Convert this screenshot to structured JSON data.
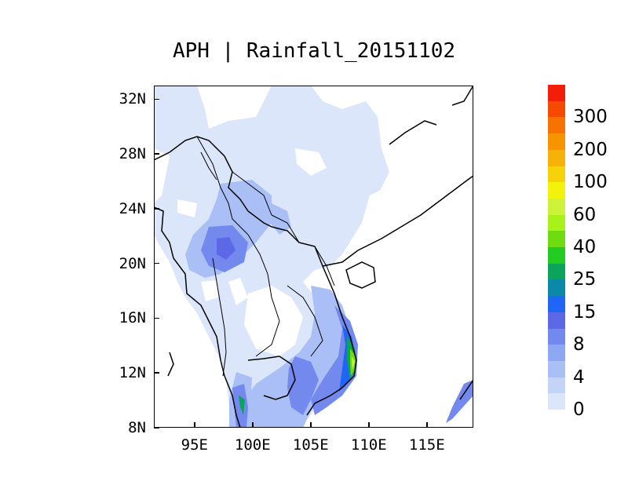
{
  "map": {
    "title": "APH | Rainfall_20151102",
    "y_ticks": [
      "32N",
      "28N",
      "24N",
      "20N",
      "16N",
      "12N",
      "8N"
    ],
    "x_ticks": [
      "95E",
      "100E",
      "105E",
      "110E",
      "115E"
    ],
    "lat_range": [
      8,
      33
    ],
    "lon_range": [
      91.5,
      119
    ],
    "legend": {
      "labels": [
        "0",
        "4",
        "8",
        "15",
        "25",
        "40",
        "60",
        "100",
        "200",
        "300"
      ],
      "colors": [
        "#dce6fb",
        "#c4d4f9",
        "#a9bff6",
        "#8ea7f2",
        "#7489ed",
        "#5c68e6",
        "#1f66f6",
        "#0a8aa8",
        "#0aa45a",
        "#22cc22",
        "#6edc10",
        "#a8f21a",
        "#ccf23a",
        "#f2f20a",
        "#f7d20a",
        "#f7b20a",
        "#f79400",
        "#f77200",
        "#f54a00",
        "#f21e0a"
      ]
    }
  }
}
